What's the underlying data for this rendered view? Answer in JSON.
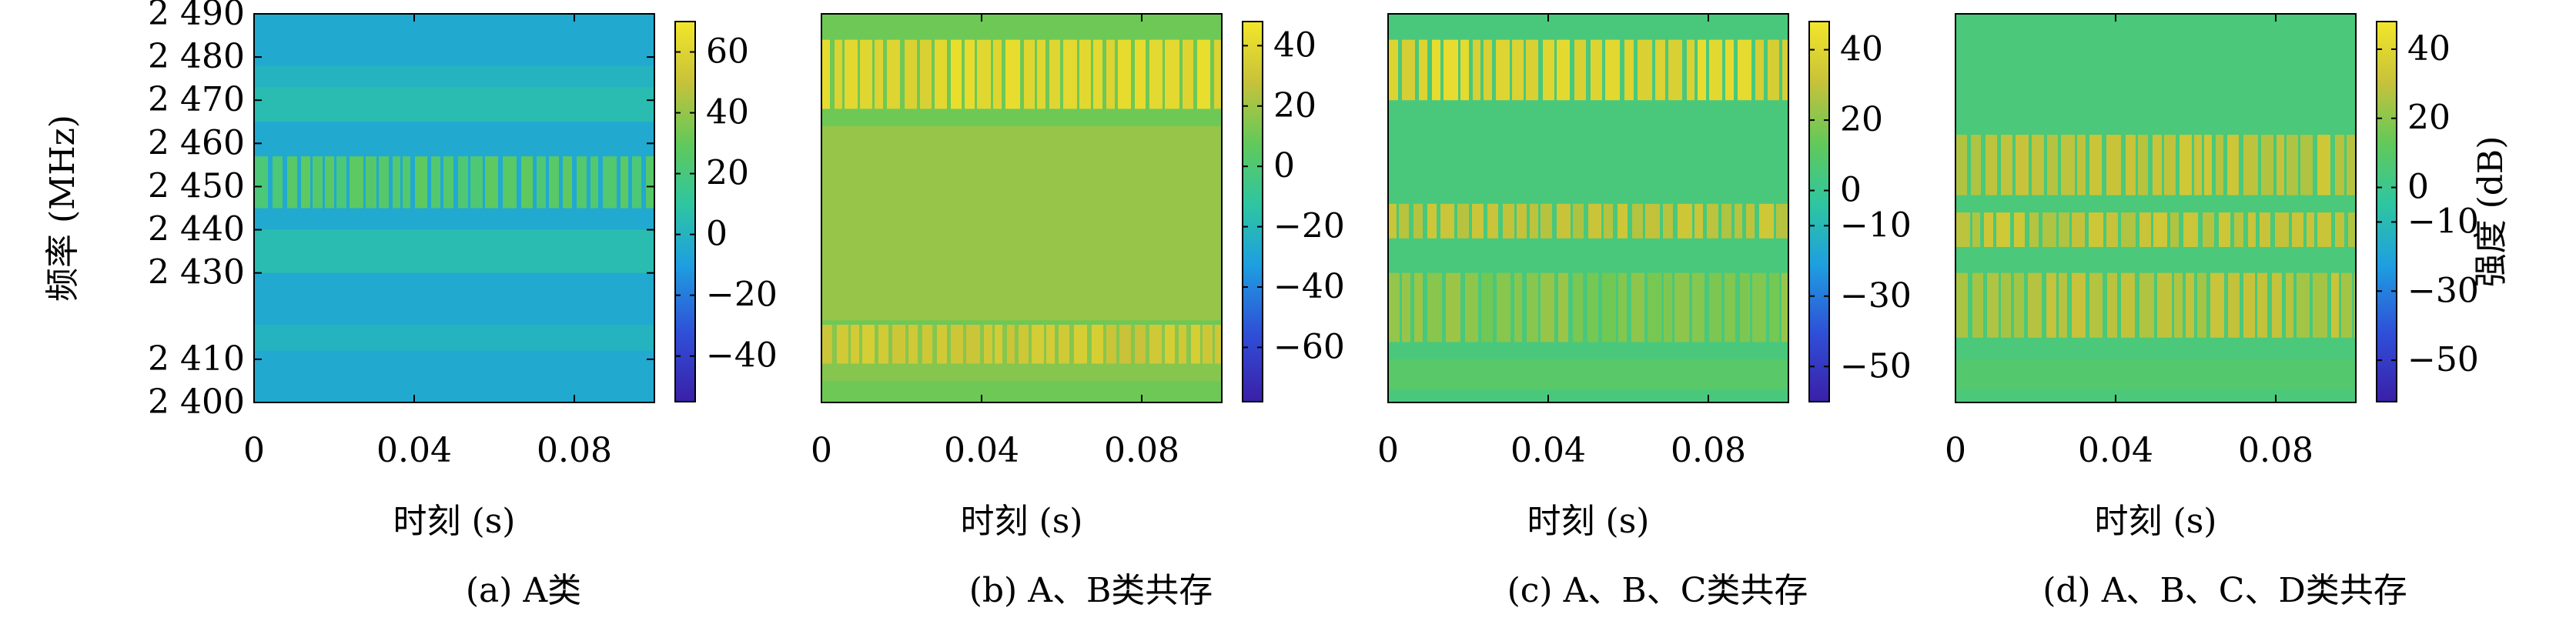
{
  "chart_data": [
    {
      "type": "heatmap",
      "caption": "(a) A类",
      "xlabel": "时刻 (s)",
      "ylabel": "频率 (MHz)",
      "x_range": [
        0,
        0.1
      ],
      "x_ticks": [
        "0",
        "0.04",
        "0.08"
      ],
      "x_tick_values": [
        0,
        0.04,
        0.08
      ],
      "y_range": [
        2400,
        2490
      ],
      "y_ticks": [
        "2 400",
        "2 410",
        "2 430",
        "2 440",
        "2 450",
        "2 460",
        "2 470",
        "2 480",
        "2 490"
      ],
      "y_tick_values": [
        2400,
        2410,
        2430,
        2440,
        2450,
        2460,
        2470,
        2480,
        2490
      ],
      "colorbar": {
        "label": "",
        "min": -55,
        "max": 70,
        "ticks": [
          "60",
          "40",
          "20",
          "0",
          "−20",
          "−40"
        ],
        "tick_values": [
          60,
          40,
          20,
          0,
          -20,
          -40
        ]
      },
      "background_level": -5,
      "bands": [
        {
          "f_low": 2472,
          "f_high": 2478,
          "level": 0
        },
        {
          "f_low": 2412,
          "f_high": 2418,
          "level": 0
        },
        {
          "f_low": 2445,
          "f_high": 2457,
          "level": 25,
          "bursty": true
        },
        {
          "f_low": 2465,
          "f_high": 2473,
          "level": 5
        },
        {
          "f_low": 2430,
          "f_high": 2440,
          "level": 5
        }
      ]
    },
    {
      "type": "heatmap",
      "caption": "(b) A、B类共存",
      "xlabel": "时刻 (s)",
      "ylabel": "",
      "x_range": [
        0,
        0.1
      ],
      "x_ticks": [
        "0",
        "0.04",
        "0.08"
      ],
      "x_tick_values": [
        0,
        0.04,
        0.08
      ],
      "y_range": [
        2400,
        2490
      ],
      "colorbar": {
        "label": "",
        "min": -78,
        "max": 48,
        "ticks": [
          "40",
          "20",
          "0",
          "−20",
          "−40",
          "−60"
        ],
        "tick_values": [
          40,
          20,
          0,
          -20,
          -40,
          -60
        ]
      },
      "background_level": 10,
      "bands": [
        {
          "f_low": 2405,
          "f_high": 2418,
          "level": 15
        },
        {
          "f_low": 2419,
          "f_high": 2464,
          "level": 18
        },
        {
          "f_low": 2468,
          "f_high": 2484,
          "level": 40,
          "bursty": true
        },
        {
          "f_low": 2409,
          "f_high": 2418,
          "level": 32,
          "bursty": true
        }
      ]
    },
    {
      "type": "heatmap",
      "caption": "(c) A、B、C类共存",
      "xlabel": "时刻 (s)",
      "ylabel": "",
      "x_range": [
        0,
        0.1
      ],
      "x_ticks": [
        "0",
        "0.04",
        "0.08"
      ],
      "x_tick_values": [
        0,
        0.04,
        0.08
      ],
      "y_range": [
        2400,
        2490
      ],
      "colorbar": {
        "label": "",
        "min": -60,
        "max": 48,
        "ticks": [
          "40",
          "20",
          "0",
          "−10",
          "−30",
          "−50"
        ],
        "tick_values": [
          40,
          20,
          0,
          -10,
          -30,
          -50
        ]
      },
      "background_level": 5,
      "bands": [
        {
          "f_low": 2470,
          "f_high": 2484,
          "level": 40,
          "bursty": true
        },
        {
          "f_low": 2438,
          "f_high": 2446,
          "level": 30,
          "bursty": true
        },
        {
          "f_low": 2414,
          "f_high": 2430,
          "level": 20,
          "bursty": true
        },
        {
          "f_low": 2403,
          "f_high": 2410,
          "level": 10
        }
      ]
    },
    {
      "type": "heatmap",
      "caption": "(d) A、B、C、D类共存",
      "xlabel": "时刻 (s)",
      "ylabel": "",
      "x_range": [
        0,
        0.1
      ],
      "x_ticks": [
        "0",
        "0.04",
        "0.08"
      ],
      "x_tick_values": [
        0,
        0.04,
        0.08
      ],
      "y_range": [
        2400,
        2490
      ],
      "colorbar": {
        "label": "强度 (dB)",
        "min": -62,
        "max": 48,
        "ticks": [
          "40",
          "20",
          "0",
          "−10",
          "−30",
          "−50"
        ],
        "tick_values": [
          40,
          20,
          0,
          -10,
          -30,
          -50
        ]
      },
      "background_level": 5,
      "bands": [
        {
          "f_low": 2448,
          "f_high": 2462,
          "level": 30,
          "bursty": true
        },
        {
          "f_low": 2436,
          "f_high": 2444,
          "level": 30,
          "bursty": true
        },
        {
          "f_low": 2415,
          "f_high": 2430,
          "level": 28,
          "bursty": true
        },
        {
          "f_low": 2403,
          "f_high": 2410,
          "level": 8
        }
      ]
    }
  ]
}
